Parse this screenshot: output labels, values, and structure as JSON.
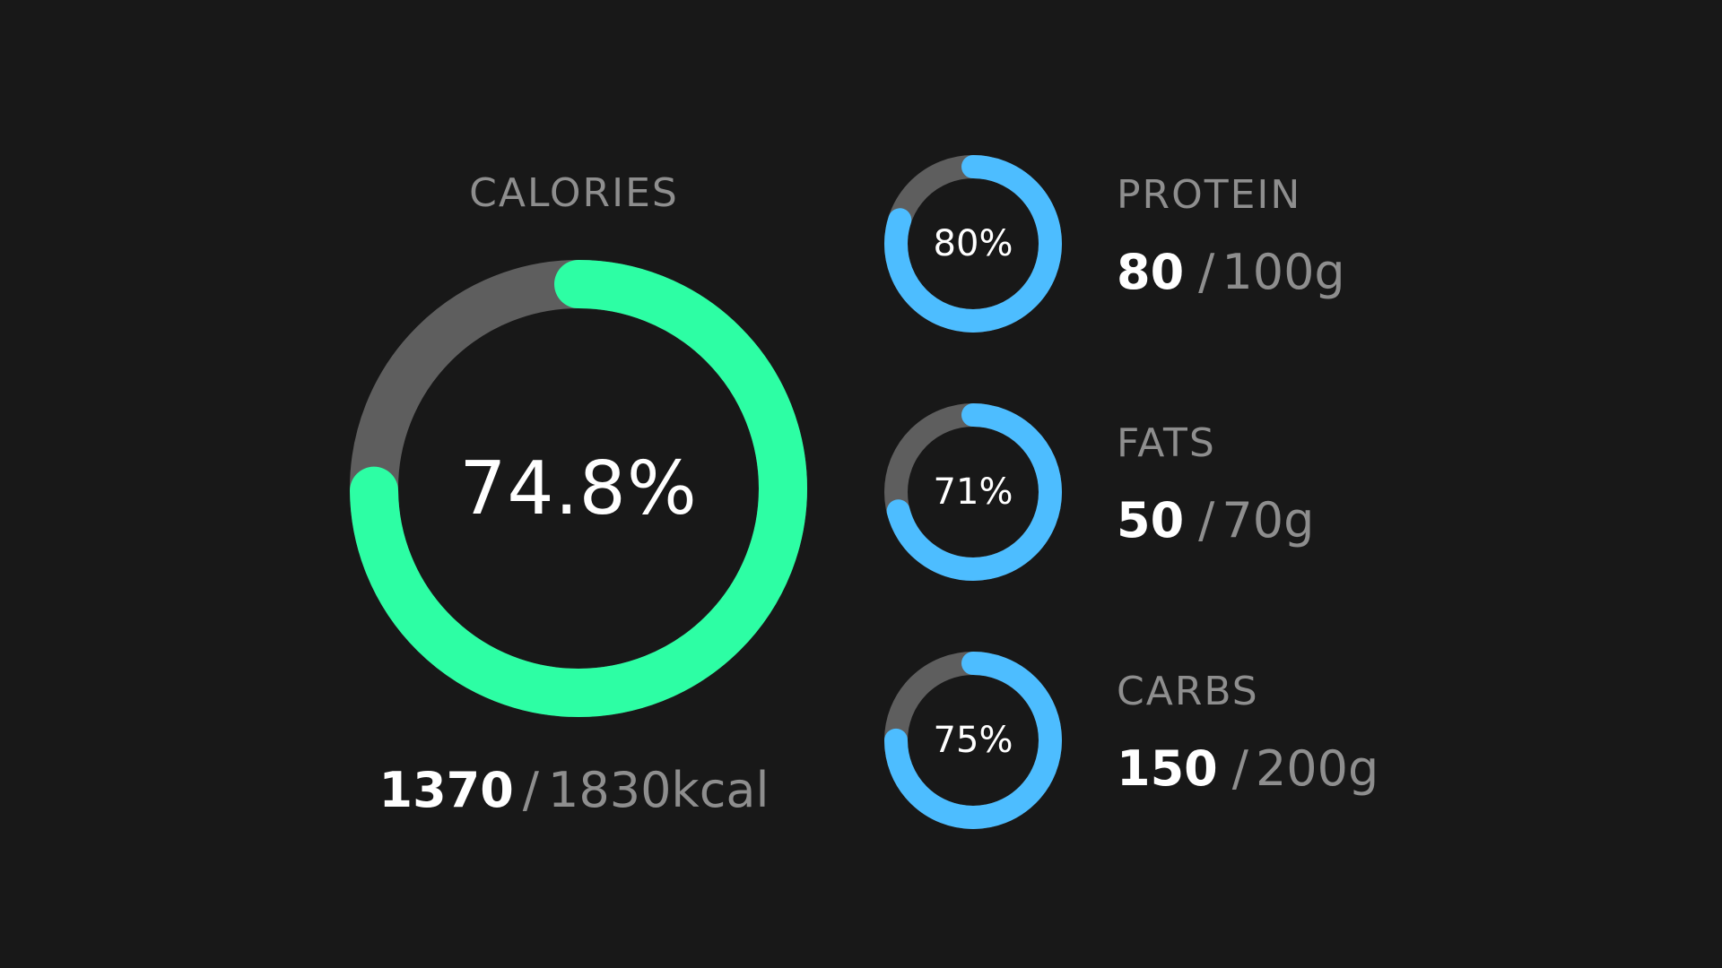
{
  "colors": {
    "background": "#181818",
    "track": "#5e5e5e",
    "calories_accent": "#2dfea4",
    "macro_accent": "#4dbdff",
    "label": "#8e8e8e",
    "value": "#ffffff"
  },
  "calories": {
    "label": "CALORIES",
    "percent_label": "74.8%",
    "progress": 0.748,
    "current": "1370",
    "separator": "/",
    "total": "1830kcal"
  },
  "macros": [
    {
      "label": "PROTEIN",
      "percent_label": "80%",
      "progress": 0.8,
      "current": "80",
      "separator": "/",
      "total": "100g"
    },
    {
      "label": "FATS",
      "percent_label": "71%",
      "progress": 0.71,
      "current": "50",
      "separator": "/",
      "total": "70g"
    },
    {
      "label": "CARBS",
      "percent_label": "75%",
      "progress": 0.75,
      "current": "150",
      "separator": "/",
      "total": "200g"
    }
  ]
}
